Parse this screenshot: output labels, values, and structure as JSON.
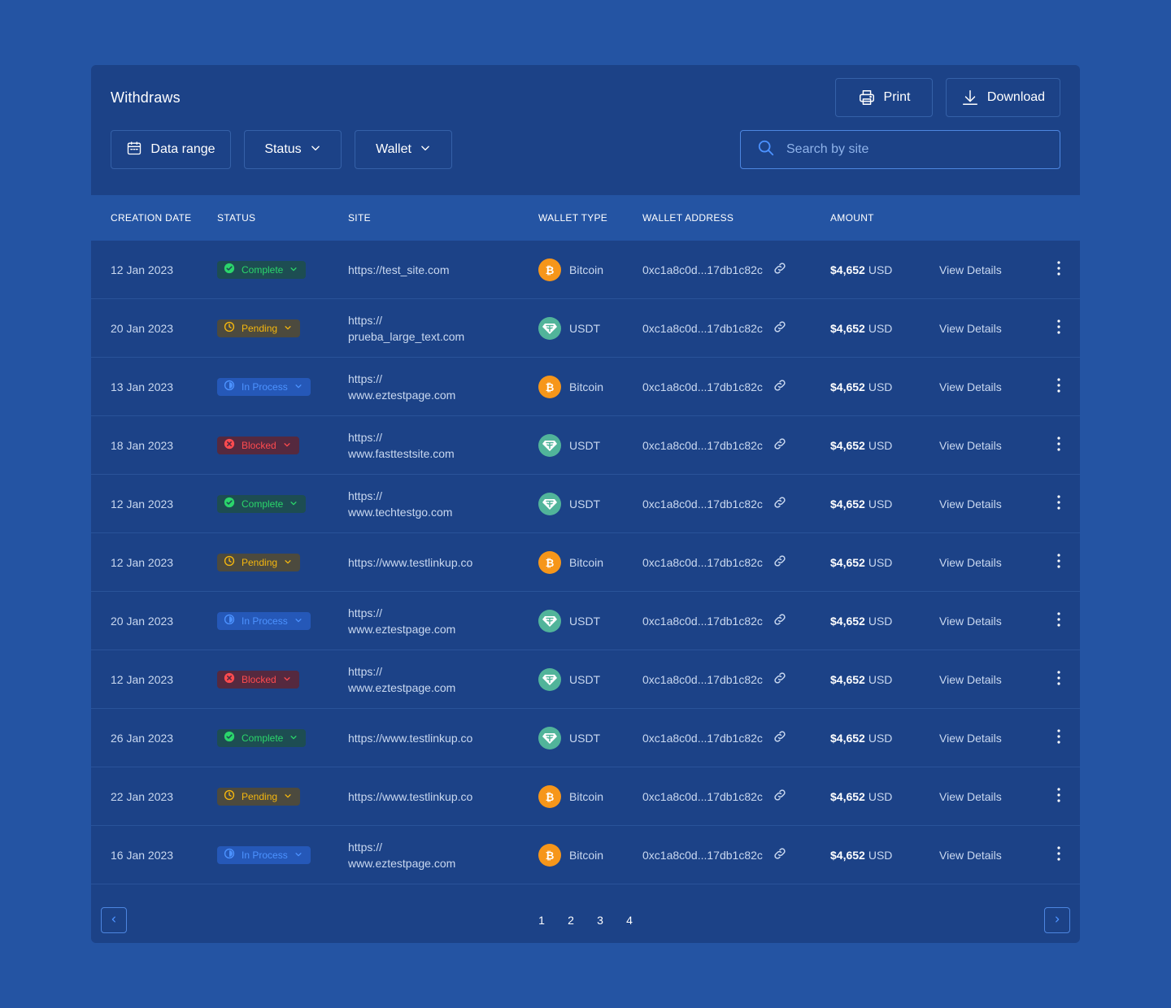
{
  "header": {
    "title": "Withdraws",
    "print_label": "Print",
    "download_label": "Download"
  },
  "filters": {
    "date_label": "Data range",
    "status_label": "Status",
    "wallet_label": "Wallet",
    "search_placeholder": "Search by site"
  },
  "columns": {
    "date": "CREATION DATE",
    "status": "STATUS",
    "site": "SITE",
    "wallet_type": "WALLET TYPE",
    "wallet_address": "WALLET ADDRESS",
    "amount": "AMOUNT"
  },
  "rows": [
    {
      "date": "12 Jan 2023",
      "status": "Complete",
      "site1": "https://test_site.com",
      "site2": "",
      "wallet": "Bitcoin",
      "address": "0xc1a8c0d...17db1c82c",
      "amount": "$4,652",
      "currency": "USD",
      "action": "View Details"
    },
    {
      "date": "20 Jan 2023",
      "status": "Pending",
      "site1": "https://",
      "site2": "prueba_large_text.com",
      "wallet": "USDT",
      "address": "0xc1a8c0d...17db1c82c",
      "amount": "$4,652",
      "currency": "USD",
      "action": "View Details"
    },
    {
      "date": "13 Jan 2023",
      "status": "In Process",
      "site1": "https://",
      "site2": "www.eztestpage.com",
      "wallet": "Bitcoin",
      "address": "0xc1a8c0d...17db1c82c",
      "amount": "$4,652",
      "currency": "USD",
      "action": "View Details"
    },
    {
      "date": "18 Jan 2023",
      "status": "Blocked",
      "site1": "https://",
      "site2": "www.fasttestsite.com",
      "wallet": "USDT",
      "address": "0xc1a8c0d...17db1c82c",
      "amount": "$4,652",
      "currency": "USD",
      "action": "View Details"
    },
    {
      "date": "12 Jan 2023",
      "status": "Complete",
      "site1": "https://",
      "site2": "www.techtestgo.com",
      "wallet": "USDT",
      "address": "0xc1a8c0d...17db1c82c",
      "amount": "$4,652",
      "currency": "USD",
      "action": "View Details"
    },
    {
      "date": "12 Jan 2023",
      "status": "Pending",
      "site1": "https://www.testlinkup.co",
      "site2": "",
      "wallet": "Bitcoin",
      "address": "0xc1a8c0d...17db1c82c",
      "amount": "$4,652",
      "currency": "USD",
      "action": "View Details"
    },
    {
      "date": "20 Jan 2023",
      "status": "In Process",
      "site1": "https://",
      "site2": "www.eztestpage.com",
      "wallet": "USDT",
      "address": "0xc1a8c0d...17db1c82c",
      "amount": "$4,652",
      "currency": "USD",
      "action": "View Details"
    },
    {
      "date": "12 Jan 2023",
      "status": "Blocked",
      "site1": "https://",
      "site2": "www.eztestpage.com",
      "wallet": "USDT",
      "address": "0xc1a8c0d...17db1c82c",
      "amount": "$4,652",
      "currency": "USD",
      "action": "View Details"
    },
    {
      "date": "26 Jan 2023",
      "status": "Complete",
      "site1": "https://www.testlinkup.co",
      "site2": "",
      "wallet": "USDT",
      "address": "0xc1a8c0d...17db1c82c",
      "amount": "$4,652",
      "currency": "USD",
      "action": "View Details"
    },
    {
      "date": "22 Jan 2023",
      "status": "Pending",
      "site1": "https://www.testlinkup.co",
      "site2": "",
      "wallet": "Bitcoin",
      "address": "0xc1a8c0d...17db1c82c",
      "amount": "$4,652",
      "currency": "USD",
      "action": "View Details"
    },
    {
      "date": "16 Jan 2023",
      "status": "In Process",
      "site1": "https://",
      "site2": "www.eztestpage.com",
      "wallet": "Bitcoin",
      "address": "0xc1a8c0d...17db1c82c",
      "amount": "$4,652",
      "currency": "USD",
      "action": "View Details"
    }
  ],
  "pagination": {
    "pages": [
      "1",
      "2",
      "3",
      "4"
    ]
  },
  "colors": {
    "page_bg": "#2454a3",
    "card_bg": "#1c4287",
    "complete": "#2bd66b",
    "pending": "#f5b70f",
    "in_process": "#4c92ff",
    "blocked": "#ff4b4f",
    "bitcoin": "#f6961a",
    "usdt": "#51b49a"
  }
}
